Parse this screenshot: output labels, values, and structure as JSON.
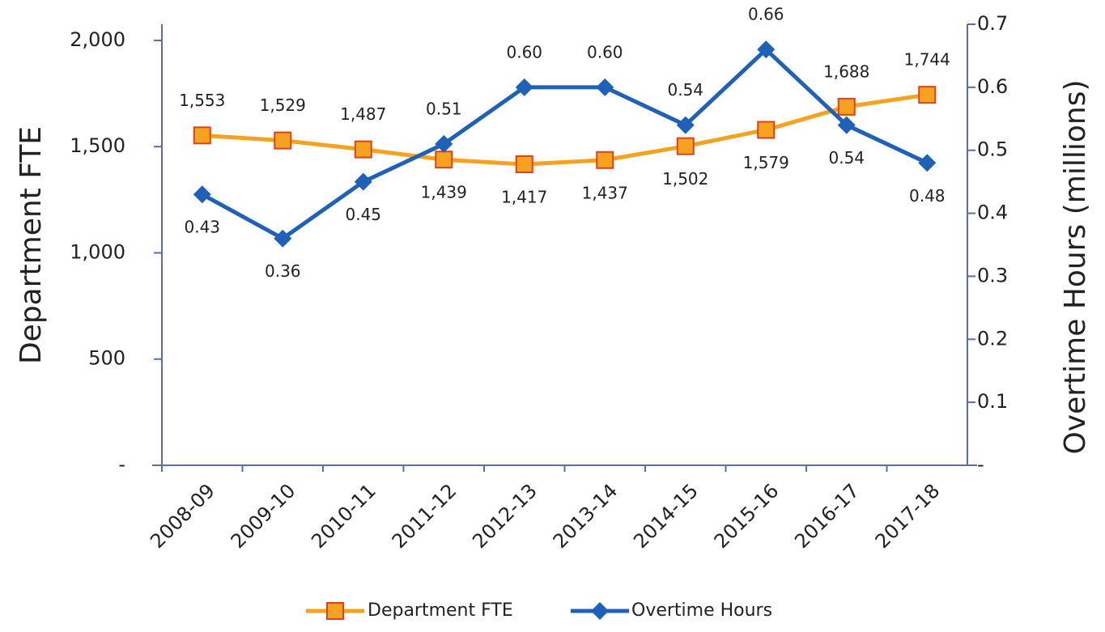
{
  "chart_data": {
    "type": "line",
    "categories": [
      "2008-09",
      "2009-10",
      "2010-11",
      "2011-12",
      "2012-13",
      "2013-14",
      "2014-15",
      "2015-16",
      "2016-17",
      "2017-18"
    ],
    "series": [
      {
        "name": "Department FTE",
        "color": "#f5a31f",
        "marker_edge": "#e0401a",
        "values": [
          1553,
          1529,
          1487,
          1439,
          1417,
          1437,
          1502,
          1579,
          1688,
          1744
        ],
        "value_labels": [
          "1,553",
          "1,529",
          "1,487",
          "1,439",
          "1,417",
          "1,437",
          "1,502",
          "1,579",
          "1,688",
          "1,744"
        ]
      },
      {
        "name": "Overtime Hours",
        "color": "#1f60b8",
        "axis": "y2",
        "values": [
          0.43,
          0.36,
          0.45,
          0.51,
          0.6,
          0.6,
          0.54,
          0.66,
          0.54,
          0.48
        ],
        "value_labels": [
          "0.43",
          "0.36",
          "0.45",
          "0.51",
          "0.60",
          "0.60",
          "0.54",
          "0.66",
          "0.54",
          "0.48"
        ]
      }
    ],
    "ylabel": "Department FTE",
    "y2label": "Overtime Hours (millions)",
    "ylim": [
      0,
      2076
    ],
    "yticks": [
      {
        "value": 0,
        "label": "-"
      },
      500,
      {
        "value": 1000,
        "label": "1,000"
      },
      {
        "value": 1500,
        "label": "1,500"
      },
      {
        "value": 2000,
        "label": "2,000"
      }
    ],
    "y2lim": [
      0,
      0.7
    ],
    "y2ticks": [
      {
        "value": 0,
        "label": "-"
      },
      0.1,
      0.2,
      0.3,
      0.4,
      0.5,
      0.6,
      0.7
    ],
    "legend": "bottom"
  }
}
